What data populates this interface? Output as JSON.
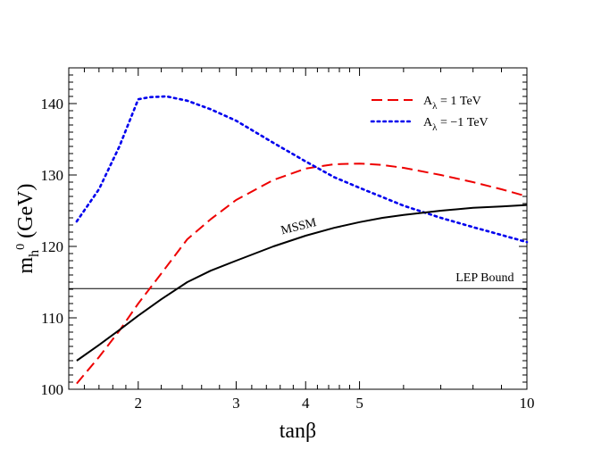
{
  "chart_data": {
    "type": "line",
    "xscale": "log",
    "xlim": [
      1.5,
      10
    ],
    "ylim": [
      100,
      145
    ],
    "xlabel": "tanβ",
    "ylabel": {
      "main": "m",
      "sub": "h",
      "sup": "0",
      "units": " (GeV)"
    },
    "xticks": [
      {
        "value": 2,
        "label": "2"
      },
      {
        "value": 3,
        "label": "3"
      },
      {
        "value": 4,
        "label": "4"
      },
      {
        "value": 5,
        "label": "5"
      },
      {
        "value": 10,
        "label": "10"
      }
    ],
    "xminor": [
      1.6,
      1.7,
      1.8,
      1.9,
      2.2,
      2.4,
      2.6,
      2.8,
      3.2,
      3.4,
      3.6,
      3.8,
      4.2,
      4.4,
      4.6,
      4.8,
      6,
      7,
      8,
      9
    ],
    "yticks": [
      {
        "value": 100,
        "label": "100"
      },
      {
        "value": 110,
        "label": "110"
      },
      {
        "value": 120,
        "label": "120"
      },
      {
        "value": 130,
        "label": "130"
      },
      {
        "value": 140,
        "label": "140"
      }
    ],
    "yminor_step": 1,
    "series": [
      {
        "name": "A_λ = 1 TeV",
        "color": "#ee0000",
        "style": "dashed",
        "x": [
          1.55,
          1.7,
          1.85,
          2.0,
          2.2,
          2.45,
          2.7,
          3.0,
          3.5,
          4.0,
          4.5,
          5.0,
          5.5,
          6.0,
          7.0,
          8.0,
          9.0,
          10.0
        ],
        "y": [
          100.8,
          104.5,
          108.2,
          112.0,
          116.2,
          121.0,
          123.8,
          126.5,
          129.3,
          130.9,
          131.5,
          131.6,
          131.4,
          131.0,
          130.0,
          129.0,
          128.0,
          127.0
        ]
      },
      {
        "name": "A_λ = −1 TeV",
        "color": "#0000ee",
        "style": "dotted",
        "x": [
          1.55,
          1.7,
          1.85,
          2.0,
          2.1,
          2.25,
          2.45,
          2.7,
          3.0,
          3.5,
          4.0,
          4.5,
          5.0,
          5.5,
          6.0,
          7.0,
          8.0,
          9.0,
          10.0
        ],
        "y": [
          123.5,
          128.0,
          134.0,
          140.6,
          140.9,
          141.0,
          140.4,
          139.2,
          137.6,
          134.5,
          131.9,
          129.7,
          128.2,
          126.9,
          125.7,
          124.0,
          122.7,
          121.6,
          120.6
        ]
      },
      {
        "name": "MSSM",
        "color": "#000000",
        "style": "solid",
        "x": [
          1.55,
          1.7,
          1.85,
          2.0,
          2.2,
          2.45,
          2.7,
          3.0,
          3.5,
          4.0,
          4.5,
          5.0,
          5.5,
          6.0,
          7.0,
          8.0,
          9.0,
          10.0
        ],
        "y": [
          104.0,
          106.2,
          108.3,
          110.3,
          112.6,
          115.0,
          116.6,
          118.0,
          120.0,
          121.5,
          122.6,
          123.4,
          124.0,
          124.4,
          125.0,
          125.4,
          125.6,
          125.8
        ]
      }
    ],
    "hlines": [
      {
        "name": "LEP Bound",
        "y": 114.1,
        "color": "#000000"
      }
    ],
    "annotations": [
      {
        "text": "MSSM",
        "x": 3.9,
        "y": 122.3,
        "rotate": -14
      },
      {
        "text": "LEP Bound",
        "x": 8.4,
        "y": 115.1,
        "rotate": 0
      }
    ],
    "legend": {
      "position": "top-right",
      "entries": [
        {
          "base": "A",
          "sub": "λ",
          "rest": " = 1 TeV",
          "color": "#ee0000",
          "style": "dashed"
        },
        {
          "base": "A",
          "sub": "λ",
          "rest": " = −1 TeV",
          "color": "#0000ee",
          "style": "dotted"
        }
      ]
    }
  }
}
